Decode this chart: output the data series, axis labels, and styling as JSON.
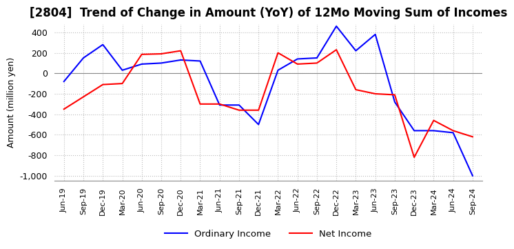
{
  "title": "[2804]  Trend of Change in Amount (YoY) of 12Mo Moving Sum of Incomes",
  "ylabel": "Amount (million yen)",
  "ylim": [
    -1050,
    480
  ],
  "yticks": [
    400,
    200,
    0,
    -200,
    -400,
    -600,
    -800,
    -1000
  ],
  "background_color": "#ffffff",
  "grid_color": "#bbbbbb",
  "ordinary_income_color": "#0000ff",
  "net_income_color": "#ff0000",
  "dates": [
    "Jun-19",
    "Sep-19",
    "Dec-19",
    "Mar-20",
    "Jun-20",
    "Sep-20",
    "Dec-20",
    "Mar-21",
    "Jun-21",
    "Sep-21",
    "Dec-21",
    "Mar-22",
    "Jun-22",
    "Sep-22",
    "Dec-22",
    "Mar-23",
    "Jun-23",
    "Sep-23",
    "Dec-23",
    "Mar-24",
    "Jun-24",
    "Sep-24"
  ],
  "ordinary_income": [
    -80,
    150,
    280,
    30,
    90,
    100,
    130,
    120,
    -310,
    -310,
    -500,
    30,
    140,
    150,
    460,
    220,
    380,
    -280,
    -560,
    -560,
    -580,
    -1000
  ],
  "net_income": [
    -350,
    -230,
    -110,
    -100,
    185,
    190,
    220,
    -300,
    -300,
    -360,
    -360,
    200,
    90,
    100,
    230,
    -160,
    -200,
    -210,
    -820,
    -460,
    -560,
    -620
  ],
  "legend_labels": [
    "Ordinary Income",
    "Net Income"
  ]
}
